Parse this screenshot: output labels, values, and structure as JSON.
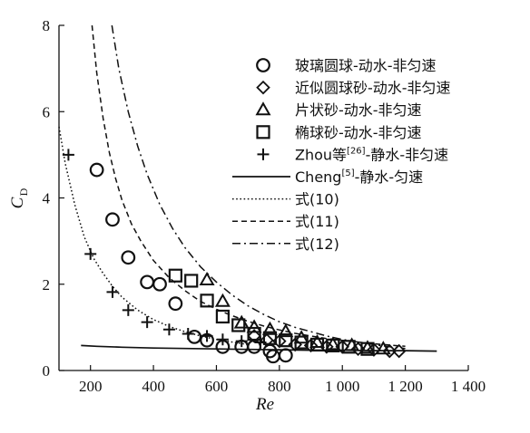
{
  "chart_data": {
    "type": "scatter",
    "xlabel": "Re",
    "ylabel_main": "C",
    "ylabel_sub": "D",
    "xlim": [
      100,
      1400
    ],
    "ylim": [
      0,
      8
    ],
    "x_ticks": [
      200,
      400,
      600,
      800,
      1000,
      1200,
      1400
    ],
    "x_tick_labels": [
      "200",
      "400",
      "600",
      "800",
      "1 000",
      "1 200",
      "1 400"
    ],
    "y_ticks": [
      0,
      2,
      4,
      6,
      8
    ],
    "y_tick_labels": [
      "0",
      "2",
      "4",
      "6",
      "8"
    ],
    "grid": false,
    "legend_position": "top-right",
    "series": [
      {
        "name": "玻璃圆球-动水-非匀速",
        "marker": "circle",
        "points": [
          [
            220,
            4.65
          ],
          [
            270,
            3.5
          ],
          [
            320,
            2.62
          ],
          [
            380,
            2.05
          ],
          [
            420,
            2.0
          ],
          [
            470,
            1.55
          ],
          [
            530,
            0.78
          ],
          [
            570,
            0.7
          ],
          [
            620,
            0.55
          ],
          [
            680,
            0.55
          ],
          [
            720,
            0.55
          ],
          [
            770,
            0.45
          ],
          [
            780,
            0.33
          ],
          [
            820,
            0.35
          ]
        ]
      },
      {
        "name": "近似圆球砂-动水-非匀速",
        "marker": "diamond",
        "points": [
          [
            720,
            0.8
          ],
          [
            760,
            0.7
          ],
          [
            800,
            0.68
          ],
          [
            850,
            0.6
          ],
          [
            900,
            0.58
          ],
          [
            950,
            0.55
          ],
          [
            1000,
            0.55
          ],
          [
            1050,
            0.5
          ],
          [
            1100,
            0.48
          ],
          [
            1150,
            0.45
          ],
          [
            1180,
            0.45
          ]
        ]
      },
      {
        "name": "片状砂-动水-非匀速",
        "marker": "triangle",
        "points": [
          [
            570,
            2.1
          ],
          [
            620,
            1.6
          ],
          [
            680,
            1.1
          ],
          [
            720,
            1.0
          ],
          [
            770,
            0.95
          ],
          [
            820,
            0.9
          ],
          [
            870,
            0.75
          ],
          [
            920,
            0.65
          ],
          [
            970,
            0.6
          ],
          [
            1030,
            0.58
          ],
          [
            1080,
            0.52
          ],
          [
            1130,
            0.5
          ]
        ]
      },
      {
        "name": "椭球砂-动水-非匀速",
        "marker": "square",
        "points": [
          [
            470,
            2.2
          ],
          [
            520,
            2.08
          ],
          [
            570,
            1.62
          ],
          [
            620,
            1.25
          ],
          [
            670,
            1.05
          ],
          [
            720,
            0.85
          ],
          [
            770,
            0.75
          ],
          [
            820,
            0.7
          ],
          [
            870,
            0.65
          ],
          [
            920,
            0.6
          ],
          [
            970,
            0.58
          ],
          [
            1020,
            0.55
          ],
          [
            1080,
            0.5
          ]
        ]
      },
      {
        "name_prefix": "Zhou等",
        "name_ref": "[26]",
        "name_suffix": "-静水-非匀速",
        "marker": "plus",
        "points": [
          [
            130,
            5.0
          ],
          [
            200,
            2.7
          ],
          [
            270,
            1.82
          ],
          [
            320,
            1.4
          ],
          [
            380,
            1.12
          ],
          [
            450,
            0.95
          ],
          [
            510,
            0.85
          ],
          [
            570,
            0.8
          ],
          [
            620,
            0.72
          ],
          [
            680,
            0.68
          ],
          [
            740,
            0.65
          ]
        ]
      }
    ],
    "curves": [
      {
        "name_prefix": "Cheng",
        "name_ref": "[5]",
        "name_suffix": "-静水-匀速",
        "style": "solid",
        "points": [
          [
            170,
            0.58
          ],
          [
            220,
            0.56
          ],
          [
            300,
            0.54
          ],
          [
            400,
            0.52
          ],
          [
            500,
            0.51
          ],
          [
            600,
            0.5
          ],
          [
            700,
            0.49
          ],
          [
            800,
            0.48
          ],
          [
            900,
            0.47
          ],
          [
            1000,
            0.47
          ],
          [
            1100,
            0.46
          ],
          [
            1200,
            0.46
          ],
          [
            1300,
            0.45
          ]
        ]
      },
      {
        "name": "式(10)",
        "style": "dotted",
        "points": [
          [
            100,
            5.65
          ],
          [
            120,
            4.8
          ],
          [
            150,
            3.85
          ],
          [
            180,
            3.1
          ],
          [
            210,
            2.6
          ],
          [
            240,
            2.25
          ],
          [
            270,
            1.95
          ],
          [
            300,
            1.7
          ],
          [
            350,
            1.4
          ],
          [
            400,
            1.18
          ],
          [
            450,
            1.02
          ],
          [
            500,
            0.9
          ],
          [
            550,
            0.8
          ],
          [
            600,
            0.72
          ],
          [
            650,
            0.66
          ],
          [
            700,
            0.6
          ]
        ]
      },
      {
        "name": "式(11)",
        "style": "dashed",
        "points": [
          [
            205,
            8.0
          ],
          [
            220,
            6.9
          ],
          [
            240,
            5.85
          ],
          [
            260,
            5.05
          ],
          [
            280,
            4.45
          ],
          [
            300,
            3.95
          ],
          [
            330,
            3.4
          ],
          [
            360,
            3.0
          ],
          [
            400,
            2.55
          ],
          [
            450,
            2.15
          ],
          [
            500,
            1.85
          ],
          [
            550,
            1.6
          ],
          [
            600,
            1.42
          ],
          [
            650,
            1.27
          ],
          [
            700,
            1.14
          ],
          [
            750,
            1.03
          ],
          [
            800,
            0.94
          ],
          [
            850,
            0.86
          ],
          [
            900,
            0.8
          ],
          [
            950,
            0.74
          ],
          [
            1000,
            0.7
          ],
          [
            1050,
            0.66
          ],
          [
            1100,
            0.62
          ],
          [
            1150,
            0.59
          ],
          [
            1200,
            0.56
          ]
        ]
      },
      {
        "name": "式(12)",
        "style": "dashdot",
        "points": [
          [
            268,
            8.0
          ],
          [
            290,
            7.0
          ],
          [
            320,
            6.0
          ],
          [
            350,
            5.2
          ],
          [
            380,
            4.55
          ],
          [
            420,
            3.85
          ],
          [
            460,
            3.3
          ],
          [
            500,
            2.85
          ],
          [
            550,
            2.4
          ],
          [
            600,
            2.05
          ],
          [
            650,
            1.75
          ],
          [
            700,
            1.5
          ],
          [
            750,
            1.3
          ],
          [
            800,
            1.13
          ],
          [
            850,
            1.0
          ],
          [
            900,
            0.9
          ],
          [
            950,
            0.8
          ],
          [
            1000,
            0.72
          ],
          [
            1050,
            0.66
          ],
          [
            1100,
            0.6
          ],
          [
            1150,
            0.55
          ],
          [
            1200,
            0.51
          ]
        ]
      }
    ]
  }
}
